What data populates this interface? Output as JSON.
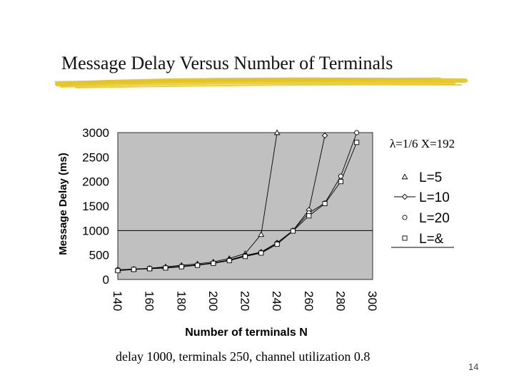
{
  "slide": {
    "title": "Message Delay Versus Number of Terminals",
    "caption": "delay 1000, terminals 250, channel utilization 0.8",
    "page_number": "14",
    "params_text": "λ=1/6  X=192"
  },
  "colors": {
    "plot_background": "#c0c0c0",
    "brush_stroke": "#e3c21a",
    "line": "#000000"
  },
  "chart_data": {
    "type": "line",
    "title": "",
    "xlabel": "Number of terminals N",
    "ylabel": "Message Delay (ms)",
    "xlim": [
      140,
      300
    ],
    "ylim": [
      0,
      3000
    ],
    "x_ticks": [
      "140",
      "160",
      "180",
      "200",
      "220",
      "240",
      "260",
      "280",
      "300"
    ],
    "y_ticks": [
      "0",
      "500",
      "1000",
      "1500",
      "2000",
      "2500",
      "3000"
    ],
    "grid": false,
    "reference_line_y": 1000,
    "legend_position": "right",
    "series": [
      {
        "name": "L=5",
        "marker": "triangle",
        "x": [
          140,
          150,
          160,
          170,
          180,
          190,
          200,
          210,
          220,
          230,
          240
        ],
        "y": [
          200,
          210,
          230,
          260,
          290,
          320,
          360,
          430,
          530,
          920,
          3000
        ]
      },
      {
        "name": "L=10",
        "marker": "diamond",
        "x": [
          140,
          150,
          160,
          170,
          180,
          190,
          200,
          210,
          220,
          230,
          240,
          250,
          260,
          270
        ],
        "y": [
          200,
          210,
          225,
          245,
          270,
          300,
          340,
          400,
          490,
          560,
          750,
          1000,
          1420,
          2940
        ]
      },
      {
        "name": "L=20",
        "marker": "circle",
        "x": [
          140,
          150,
          160,
          170,
          180,
          190,
          200,
          210,
          220,
          230,
          240,
          250,
          260,
          270,
          280,
          290
        ],
        "y": [
          200,
          210,
          225,
          240,
          265,
          295,
          335,
          390,
          480,
          550,
          740,
          1000,
          1360,
          1560,
          2110,
          3000
        ]
      },
      {
        "name": "L=&",
        "marker": "square",
        "x": [
          140,
          150,
          160,
          170,
          180,
          190,
          200,
          210,
          220,
          230,
          240,
          250,
          260,
          270,
          280,
          290
        ],
        "y": [
          180,
          205,
          220,
          235,
          260,
          290,
          330,
          385,
          470,
          540,
          720,
          990,
          1300,
          1550,
          2000,
          2800
        ]
      }
    ]
  }
}
